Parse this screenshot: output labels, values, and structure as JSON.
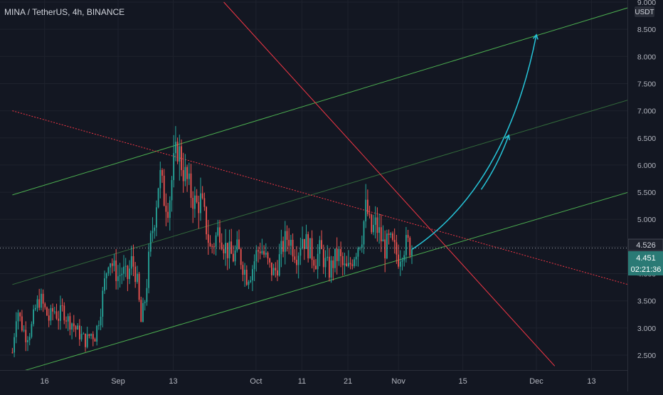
{
  "header": {
    "symbol": "MINA / TetherUS",
    "interval": "4h",
    "exchange": "BINANCE",
    "title": "MINA / TetherUS, 4h, BINANCE"
  },
  "colors": {
    "background": "#131722",
    "grid": "#1e222d",
    "axis_text": "#b2b5be",
    "candle_up": "#26a69a",
    "candle_down": "#ef5350",
    "channel_line": "#4caf50",
    "resistance_line": "#f23645",
    "projection_arrow": "#26c6da",
    "current_price_bg": "#1e222d",
    "last_price_bg": "#2a7a75"
  },
  "price_axis": {
    "currency": "USDT",
    "ticks": [
      "9.000",
      "8.500",
      "8.000",
      "7.500",
      "7.000",
      "6.500",
      "6.000",
      "5.500",
      "5.000",
      "4.500",
      "4.000",
      "3.500",
      "3.000",
      "2.500"
    ],
    "current_price_label": "4.526",
    "last_price_label": "4.451",
    "countdown_label": "02:21:36"
  },
  "time_axis": {
    "ticks": [
      "16",
      "Sep",
      "13",
      "Oct",
      "11",
      "21",
      "Nov",
      "15",
      "Dec",
      "13"
    ]
  },
  "chart_data": {
    "type": "candlestick",
    "title": "MINA / TetherUS, 4h, BINANCE",
    "ylim": [
      2.2,
      9.0
    ],
    "y_scale": "linear",
    "grid": true,
    "x_ticks": [
      "16",
      "Sep",
      "13",
      "Oct",
      "11",
      "21",
      "Nov",
      "15",
      "Dec",
      "13"
    ],
    "y_ticks": [
      2.5,
      3.0,
      3.5,
      4.0,
      4.5,
      5.0,
      5.5,
      6.0,
      6.5,
      7.0,
      7.5,
      8.0,
      8.5,
      9.0
    ],
    "price_path": [
      [
        "2021-08-09",
        2.55
      ],
      [
        "2021-08-10",
        3.4
      ],
      [
        "2021-08-11",
        3.05
      ],
      [
        "2021-08-12",
        2.85
      ],
      [
        "2021-08-13",
        2.95
      ],
      [
        "2021-08-14",
        3.35
      ],
      [
        "2021-08-15",
        3.55
      ],
      [
        "2021-08-16",
        3.35
      ],
      [
        "2021-08-17",
        3.15
      ],
      [
        "2021-08-18",
        3.35
      ],
      [
        "2021-08-19",
        3.2
      ],
      [
        "2021-08-20",
        3.35
      ],
      [
        "2021-08-21",
        3.15
      ],
      [
        "2021-08-22",
        3.1
      ],
      [
        "2021-08-23",
        2.95
      ],
      [
        "2021-08-24",
        2.85
      ],
      [
        "2021-08-25",
        2.75
      ],
      [
        "2021-08-26",
        2.9
      ],
      [
        "2021-08-27",
        2.85
      ],
      [
        "2021-08-28",
        3.25
      ],
      [
        "2021-08-29",
        3.8
      ],
      [
        "2021-08-30",
        4.35
      ],
      [
        "2021-08-31",
        4.1
      ],
      [
        "2021-09-01",
        3.95
      ],
      [
        "2021-09-02",
        4.05
      ],
      [
        "2021-09-03",
        3.9
      ],
      [
        "2021-09-04",
        4.25
      ],
      [
        "2021-09-05",
        3.95
      ],
      [
        "2021-09-06",
        3.1
      ],
      [
        "2021-09-07",
        3.6
      ],
      [
        "2021-09-08",
        4.55
      ],
      [
        "2021-09-09",
        5.1
      ],
      [
        "2021-09-10",
        5.85
      ],
      [
        "2021-09-11",
        5.4
      ],
      [
        "2021-09-12",
        5.25
      ],
      [
        "2021-09-13",
        5.95
      ],
      [
        "2021-09-14",
        6.35
      ],
      [
        "2021-09-15",
        5.95
      ],
      [
        "2021-09-16",
        5.7
      ],
      [
        "2021-09-17",
        5.45
      ],
      [
        "2021-09-18",
        5.25
      ],
      [
        "2021-09-19",
        5.35
      ],
      [
        "2021-09-20",
        4.95
      ],
      [
        "2021-09-21",
        4.45
      ],
      [
        "2021-09-22",
        4.6
      ],
      [
        "2021-09-23",
        4.85
      ],
      [
        "2021-09-24",
        4.55
      ],
      [
        "2021-09-25",
        4.4
      ],
      [
        "2021-09-26",
        4.3
      ],
      [
        "2021-09-27",
        4.45
      ],
      [
        "2021-09-28",
        4.2
      ],
      [
        "2021-09-29",
        3.95
      ],
      [
        "2021-09-30",
        4.05
      ],
      [
        "2021-10-01",
        4.35
      ],
      [
        "2021-10-02",
        4.5
      ],
      [
        "2021-10-03",
        4.3
      ],
      [
        "2021-10-04",
        4.1
      ],
      [
        "2021-10-05",
        4.0
      ],
      [
        "2021-10-06",
        4.25
      ],
      [
        "2021-10-07",
        4.55
      ],
      [
        "2021-10-08",
        4.7
      ],
      [
        "2021-10-09",
        4.5
      ],
      [
        "2021-10-10",
        4.35
      ],
      [
        "2021-10-11",
        4.7
      ],
      [
        "2021-10-12",
        4.55
      ],
      [
        "2021-10-13",
        4.4
      ],
      [
        "2021-10-14",
        4.25
      ],
      [
        "2021-10-15",
        4.45
      ],
      [
        "2021-10-16",
        4.2
      ],
      [
        "2021-10-17",
        4.05
      ],
      [
        "2021-10-18",
        4.25
      ],
      [
        "2021-10-19",
        4.35
      ],
      [
        "2021-10-20",
        4.1
      ],
      [
        "2021-10-21",
        4.05
      ],
      [
        "2021-10-22",
        4.3
      ],
      [
        "2021-10-23",
        4.5
      ],
      [
        "2021-10-24",
        4.7
      ],
      [
        "2021-10-25",
        5.25
      ],
      [
        "2021-10-26",
        4.75
      ],
      [
        "2021-10-27",
        4.9
      ],
      [
        "2021-10-28",
        4.7
      ],
      [
        "2021-10-29",
        4.45
      ],
      [
        "2021-10-30",
        4.6
      ],
      [
        "2021-10-31",
        4.45
      ],
      [
        "2021-11-01",
        4.3
      ],
      [
        "2021-11-02",
        4.5
      ],
      [
        "2021-11-03",
        4.55
      ],
      [
        "2021-11-04",
        4.451
      ]
    ],
    "overlays": [
      {
        "type": "trend-channel",
        "color": "#4caf50",
        "lower": [
          [
            "2021-08-09",
            2.15
          ],
          [
            "2021-12-23",
            5.55
          ]
        ],
        "middle": [
          [
            "2021-08-09",
            3.8
          ],
          [
            "2021-12-23",
            7.25
          ]
        ],
        "upper": [
          [
            "2021-08-09",
            5.45
          ],
          [
            "2021-12-23",
            8.95
          ]
        ]
      },
      {
        "type": "resistance-line",
        "style": "solid",
        "color": "#f23645",
        "points": [
          [
            "2021-09-24",
            9.0
          ],
          [
            "2021-12-05",
            2.3
          ]
        ]
      },
      {
        "type": "resistance-line",
        "style": "dotted",
        "color": "#f23645",
        "points": [
          [
            "2021-08-09",
            7.0
          ],
          [
            "2021-12-23",
            3.75
          ]
        ]
      },
      {
        "type": "projection-arrow",
        "color": "#26c6da",
        "points": [
          [
            "2021-11-04",
            4.45
          ],
          [
            "2021-11-21",
            5.4
          ],
          [
            "2021-11-28",
            7.1
          ],
          [
            "2021-12-01",
            8.4
          ]
        ]
      },
      {
        "type": "projection-arrow",
        "color": "#26c6da",
        "points": [
          [
            "2021-11-19",
            5.55
          ],
          [
            "2021-11-25",
            6.55
          ]
        ]
      }
    ],
    "current_price": 4.526,
    "last_price": 4.451
  }
}
